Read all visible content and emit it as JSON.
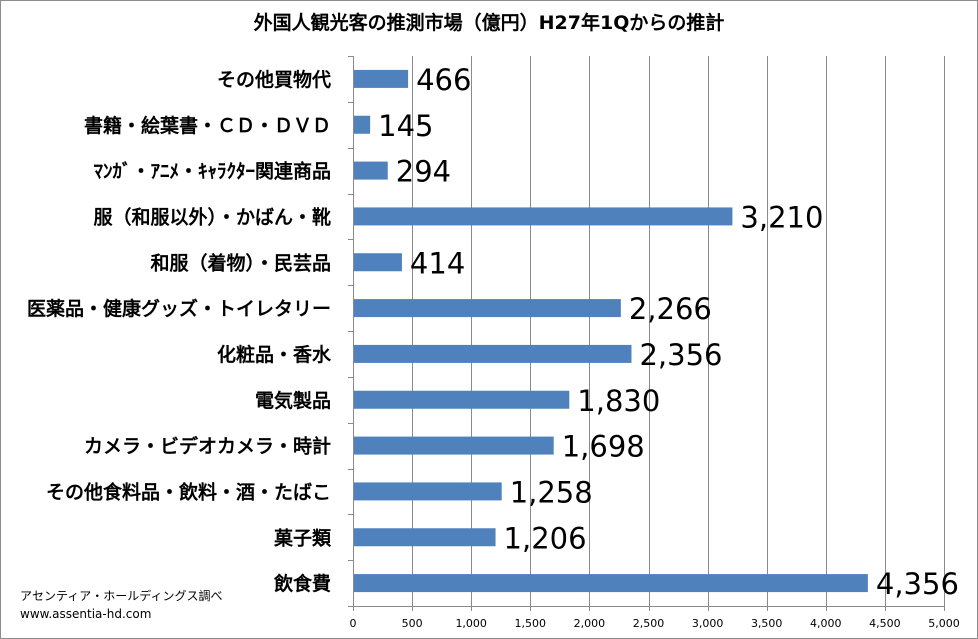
{
  "chart_data": {
    "type": "bar",
    "orientation": "horizontal",
    "title": "外国人観光客の推測市場（億円）H27年1Qからの推計",
    "categories": [
      "その他買物代",
      "書籍・絵葉書・ＣＤ・ＤＶＤ",
      "ﾏﾝｶﾞ・ｱﾆﾒ・ｷｬﾗｸﾀｰ関連商品",
      "服（和服以外）・かばん・靴",
      "和服（着物）・民芸品",
      "医薬品・健康グッズ・トイレタリー",
      "化粧品・香水",
      "電気製品",
      "カメラ・ビデオカメラ・時計",
      "その他食料品・飲料・酒・たばこ",
      "菓子類",
      "飲食費"
    ],
    "values": [
      466,
      145,
      294,
      3210,
      414,
      2266,
      2356,
      1830,
      1698,
      1258,
      1206,
      4356
    ],
    "value_labels": [
      "466",
      "145",
      "294",
      "3,210",
      "414",
      "2,266",
      "2,356",
      "1,830",
      "1,698",
      "1,258",
      "1,206",
      "4,356"
    ],
    "xlim": [
      0,
      5000
    ],
    "x_ticks": [
      0,
      500,
      1000,
      1500,
      2000,
      2500,
      3000,
      3500,
      4000,
      4500,
      5000
    ],
    "x_tick_labels": [
      "0",
      "500",
      "1,000",
      "1,500",
      "2,000",
      "2,500",
      "3,000",
      "3,500",
      "4,000",
      "4,500",
      "5,000"
    ],
    "grid": "vertical",
    "bar_color": "#4f81bd",
    "legend": "none"
  },
  "credit": {
    "line1": "アセンティア・ホールディングス調べ",
    "line2": "www.assentia-hd.com"
  }
}
